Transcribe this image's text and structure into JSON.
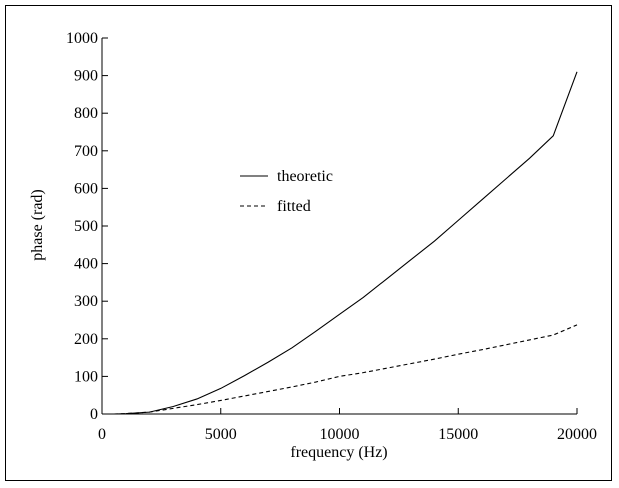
{
  "chart_data": {
    "type": "line",
    "xlabel": "frequency (Hz)",
    "ylabel": "phase (rad)",
    "xlim": [
      0,
      20000
    ],
    "ylim": [
      0,
      1000
    ],
    "xticks": [
      0,
      5000,
      10000,
      15000,
      20000
    ],
    "yticks": [
      0,
      100,
      200,
      300,
      400,
      500,
      600,
      700,
      800,
      900,
      1000
    ],
    "grid": false,
    "legend_placement": "center-left",
    "series": [
      {
        "name": "theoretic",
        "style": "solid",
        "color": "#000000",
        "x": [
          500,
          1000,
          2000,
          3000,
          4000,
          5000,
          6000,
          7000,
          8000,
          9000,
          10000,
          11000,
          12000,
          13000,
          14000,
          15000,
          16000,
          17000,
          18000,
          19000,
          20000
        ],
        "values": [
          0,
          1,
          5,
          20,
          40,
          68,
          102,
          138,
          176,
          220,
          265,
          310,
          360,
          410,
          460,
          515,
          570,
          625,
          680,
          740,
          910
        ]
      },
      {
        "name": "fitted",
        "style": "dashed",
        "color": "#000000",
        "x": [
          500,
          1000,
          2000,
          3000,
          4000,
          5000,
          6000,
          7000,
          8000,
          9000,
          10000,
          11000,
          12000,
          13000,
          14000,
          15000,
          16000,
          17000,
          18000,
          19000,
          20000
        ],
        "values": [
          0,
          1,
          5,
          15,
          25,
          36,
          48,
          60,
          72,
          85,
          100,
          110,
          122,
          134,
          146,
          159,
          171,
          184,
          197,
          210,
          237
        ]
      }
    ]
  }
}
